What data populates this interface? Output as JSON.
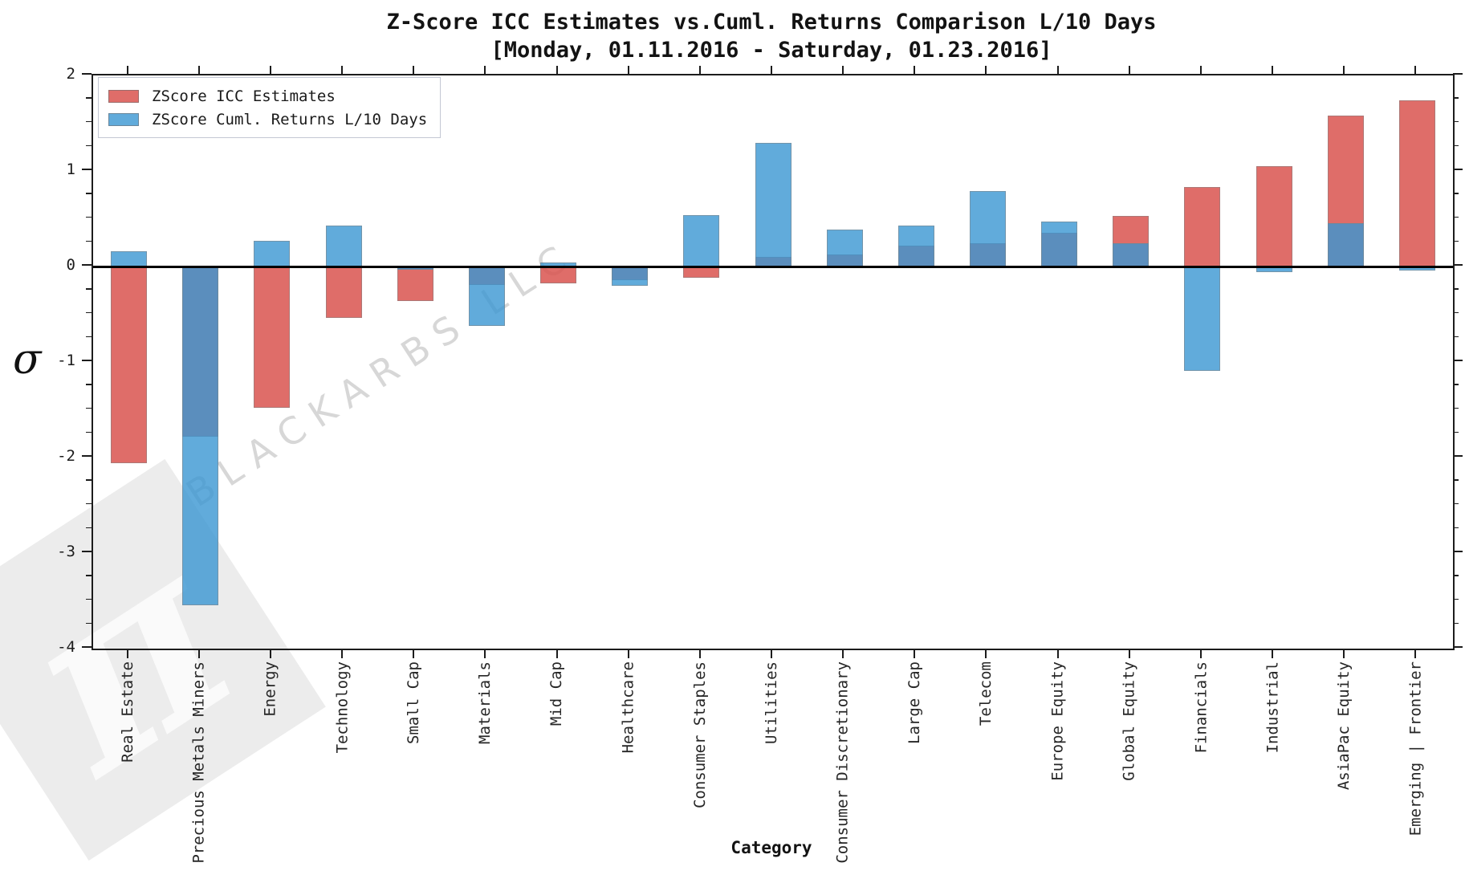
{
  "title": {
    "line1": "Z-Score ICC Estimates vs.Cuml. Returns Comparison L/10 Days",
    "line2": "[Monday, 01.11.2016 - Saturday, 01.23.2016]"
  },
  "watermark": {
    "pi": "π",
    "text": "BLACKARBS LLC"
  },
  "legend": {
    "items": [
      {
        "label": "ZScore ICC Estimates",
        "color": "#d9534f"
      },
      {
        "label": "ZScore Cuml. Returns L/10 Days",
        "color": "#3a96d2"
      }
    ]
  },
  "chart_data": {
    "type": "bar",
    "layout": "overlay",
    "title": "Z-Score ICC Estimates vs.Cuml. Returns Comparison L/10 Days [Monday, 01.11.2016 - Saturday, 01.23.2016]",
    "xlabel": "Category",
    "ylabel": "σ",
    "ylim": [
      -4,
      2
    ],
    "yticks": [
      2,
      1,
      0,
      -1,
      -2,
      -3,
      -4
    ],
    "minor_tick_step": 0.25,
    "legend_position": "upper left",
    "grid": false,
    "categories": [
      "Real Estate",
      "Precious Metals Miners",
      "Energy",
      "Technology",
      "Small Cap",
      "Materials",
      "Mid Cap",
      "Healthcare",
      "Consumer Staples",
      "Utilities",
      "Consumer Discretionary",
      "Large Cap",
      "Telecom",
      "Europe Equity",
      "Global Equity",
      "Financials",
      "Industrial",
      "AsiaPac Equity",
      "Emerging | Frontier"
    ],
    "series": [
      {
        "name": "ZScore ICC Estimates",
        "color": "#d9534f",
        "values": [
          -2.06,
          -1.78,
          -1.48,
          -0.54,
          -0.36,
          -0.19,
          -0.18,
          -0.14,
          -0.12,
          0.1,
          0.13,
          0.22,
          0.24,
          0.35,
          0.53,
          0.83,
          1.05,
          1.58,
          1.74
        ]
      },
      {
        "name": "ZScore Cuml. Returns L/10 Days",
        "color": "#3a96d2",
        "values": [
          0.16,
          -3.55,
          0.27,
          0.43,
          -0.03,
          -0.62,
          0.04,
          -0.2,
          0.54,
          1.29,
          0.39,
          0.43,
          0.79,
          0.47,
          0.24,
          -1.09,
          -0.06,
          0.45,
          -0.04
        ]
      }
    ]
  }
}
